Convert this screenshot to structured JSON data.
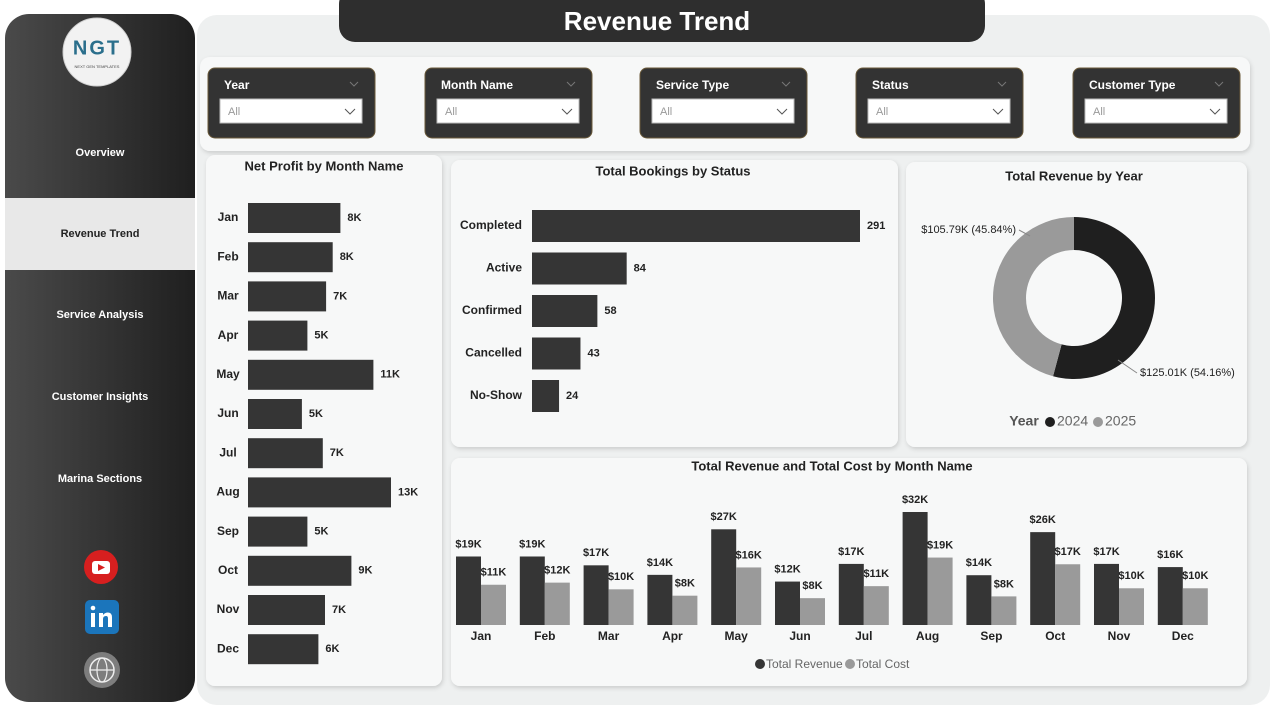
{
  "header": {
    "title": "Revenue Trend"
  },
  "logo": {
    "text": "NGT",
    "subtitle": "NEXT GEN TEMPLATES"
  },
  "nav": {
    "items": [
      "Overview",
      "Revenue Trend",
      "Service Analysis",
      "Customer Insights",
      "Marina Sections"
    ],
    "active": 1
  },
  "filters": [
    {
      "label": "Year",
      "value": "All"
    },
    {
      "label": "Month Name",
      "value": "All"
    },
    {
      "label": "Service Type",
      "value": "All"
    },
    {
      "label": "Status",
      "value": "All"
    },
    {
      "label": "Customer Type",
      "value": "All"
    }
  ],
  "chart_data": [
    {
      "type": "bar",
      "orientation": "horizontal",
      "title": "Net Profit by Month Name",
      "color": "#353535",
      "categories": [
        "Jan",
        "Feb",
        "Mar",
        "Apr",
        "May",
        "Jun",
        "Jul",
        "Aug",
        "Sep",
        "Oct",
        "Nov",
        "Dec"
      ],
      "values": [
        8400,
        7700,
        7100,
        5400,
        11400,
        4900,
        6800,
        13000,
        5400,
        9400,
        7000,
        6400
      ],
      "value_labels": [
        "8K",
        "8K",
        "7K",
        "5K",
        "11K",
        "5K",
        "7K",
        "13K",
        "5K",
        "9K",
        "7K",
        "6K"
      ]
    },
    {
      "type": "bar",
      "orientation": "horizontal",
      "title": "Total Bookings by Status",
      "color": "#353535",
      "categories": [
        "Completed",
        "Active",
        "Confirmed",
        "Cancelled",
        "No-Show"
      ],
      "values": [
        291,
        84,
        58,
        43,
        24
      ]
    },
    {
      "type": "pie",
      "title": "Total Revenue by Year",
      "legend_title": "Year",
      "categories": [
        "2024",
        "2025"
      ],
      "values": [
        125010,
        105790
      ],
      "value_labels": [
        "$125.01K (54.16%)",
        "$105.79K (45.84%)"
      ],
      "colors": [
        "#1f1f1f",
        "#9a9a9a"
      ]
    },
    {
      "type": "grouped-bar",
      "title": "Total Revenue and Total Cost by Month Name",
      "categories": [
        "Jan",
        "Feb",
        "Mar",
        "Apr",
        "May",
        "Jun",
        "Jul",
        "Aug",
        "Sep",
        "Oct",
        "Nov",
        "Dec"
      ],
      "series": [
        {
          "name": "Total Revenue",
          "color": "#353535",
          "values": [
            19400,
            19400,
            16900,
            14200,
            27100,
            12300,
            17300,
            32000,
            14100,
            26300,
            17300,
            16400
          ],
          "value_labels": [
            "$19K",
            "$19K",
            "$17K",
            "$14K",
            "$27K",
            "$12K",
            "$17K",
            "$32K",
            "$14K",
            "$26K",
            "$17K",
            "$16K"
          ]
        },
        {
          "name": "Total Cost",
          "color": "#9a9a9a",
          "values": [
            11400,
            12000,
            10100,
            8300,
            16300,
            7600,
            11000,
            19100,
            8100,
            17200,
            10400,
            10400
          ],
          "value_labels": [
            "$11K",
            "$12K",
            "$10K",
            "$8K",
            "$16K",
            "$8K",
            "$11K",
            "$19K",
            "$8K",
            "$17K",
            "$10K",
            "$10K"
          ]
        }
      ]
    }
  ]
}
